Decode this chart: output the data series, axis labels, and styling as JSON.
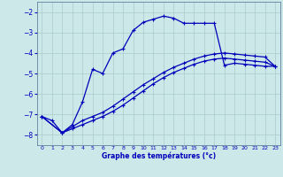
{
  "xlabel": "Graphe des températures (°c)",
  "bg_color": "#cce8e8",
  "grid_color": "#aacccc",
  "line_color": "#0000bb",
  "ylim": [
    -8.5,
    -1.5
  ],
  "xlim": [
    -0.5,
    23.5
  ],
  "yticks": [
    -8,
    -7,
    -6,
    -5,
    -4,
    -3,
    -2
  ],
  "xticks": [
    0,
    1,
    2,
    3,
    4,
    5,
    6,
    7,
    8,
    9,
    10,
    11,
    12,
    13,
    14,
    15,
    16,
    17,
    18,
    19,
    20,
    21,
    22,
    23
  ],
  "line1_x": [
    0,
    1,
    2,
    3,
    4,
    5,
    6,
    7,
    8,
    9,
    10,
    11,
    12,
    13,
    14,
    15,
    16,
    17,
    18,
    19,
    20,
    21,
    22,
    23
  ],
  "line1_y": [
    -7.1,
    -7.3,
    -7.9,
    -7.5,
    -6.4,
    -4.8,
    -5.0,
    -4.0,
    -3.8,
    -2.9,
    -2.5,
    -2.35,
    -2.2,
    -2.3,
    -2.55,
    -2.55,
    -2.55,
    -2.55,
    -4.6,
    -4.5,
    -4.55,
    -4.6,
    -4.65,
    -4.65
  ],
  "line2_x": [
    0,
    2,
    3,
    4,
    5,
    6,
    7,
    8,
    9,
    10,
    11,
    12,
    13,
    14,
    15,
    16,
    17,
    18,
    19,
    20,
    21,
    22,
    23
  ],
  "line2_y": [
    -7.1,
    -7.9,
    -7.6,
    -7.3,
    -7.1,
    -6.9,
    -6.6,
    -6.25,
    -5.9,
    -5.55,
    -5.25,
    -4.95,
    -4.7,
    -4.5,
    -4.3,
    -4.15,
    -4.05,
    -4.0,
    -4.05,
    -4.1,
    -4.15,
    -4.2,
    -4.65
  ],
  "line3_x": [
    0,
    2,
    3,
    4,
    5,
    6,
    7,
    8,
    9,
    10,
    11,
    12,
    13,
    14,
    15,
    16,
    17,
    18,
    19,
    20,
    21,
    22,
    23
  ],
  "line3_y": [
    -7.1,
    -7.9,
    -7.7,
    -7.5,
    -7.3,
    -7.1,
    -6.85,
    -6.55,
    -6.2,
    -5.85,
    -5.5,
    -5.2,
    -4.95,
    -4.75,
    -4.55,
    -4.4,
    -4.3,
    -4.25,
    -4.3,
    -4.35,
    -4.4,
    -4.45,
    -4.65
  ]
}
